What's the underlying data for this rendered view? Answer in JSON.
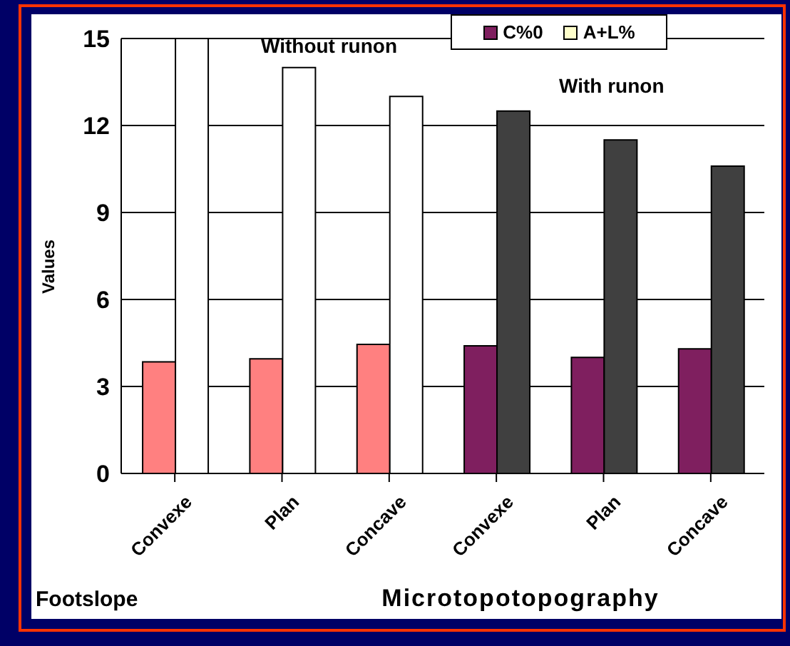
{
  "chart_data": {
    "type": "bar",
    "xlabel": "Microtopotopography",
    "ylabel": "Values",
    "categories": [
      "Convexe",
      "Plan",
      "Concave",
      "Convexe",
      "Plan",
      "Concave"
    ],
    "series": [
      {
        "name": "C%0",
        "color": "#7f1f5f",
        "colors": [
          "#ff8080",
          "#ff8080",
          "#ff8080",
          "#7f1f5f",
          "#7f1f5f",
          "#7f1f5f"
        ],
        "values": [
          3.85,
          3.95,
          4.45,
          4.4,
          4.0,
          4.3
        ]
      },
      {
        "name": "A+L%",
        "color": "#ffffcc",
        "colors": [
          "#ffffff",
          "#ffffff",
          "#ffffff",
          "#404040",
          "#404040",
          "#404040"
        ],
        "values": [
          15,
          14,
          13,
          12.5,
          11.5,
          10.6
        ]
      }
    ],
    "ylim": [
      0,
      15
    ],
    "yticks": [
      0,
      3,
      6,
      9,
      12,
      15
    ],
    "grid": "y",
    "legend": "top right",
    "annotations": [
      "Without runon",
      "With runon",
      "Footslope"
    ]
  }
}
